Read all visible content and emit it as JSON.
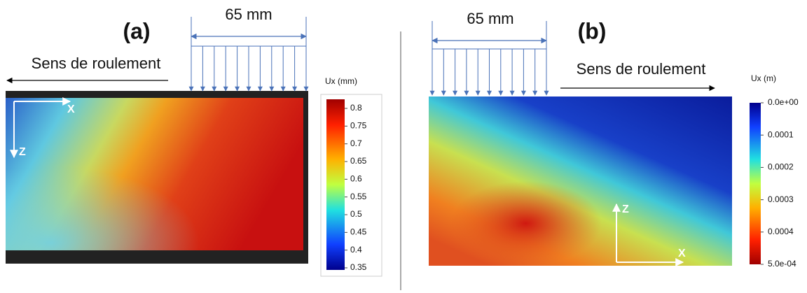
{
  "panels": [
    {
      "label": "(a)",
      "width": "65 mm",
      "direction": "Sens de roulement",
      "axes": {
        "x": "X",
        "z": "Z"
      },
      "colorbar": {
        "title": "Ux (mm)",
        "ticks": [
          "0.8",
          "0.75",
          "0.7",
          "0.65",
          "0.6",
          "0.55",
          "0.5",
          "0.45",
          "0.4",
          "0.35"
        ]
      }
    },
    {
      "label": "(b)",
      "width": "65 mm",
      "direction": "Sens de roulement",
      "axes": {
        "x": "X",
        "z": "Z"
      },
      "colorbar": {
        "title": "Ux (m)",
        "ticks": [
          "0.0e+00",
          "0.0001",
          "0.0002",
          "0.0003",
          "0.0004",
          "5.0e-04"
        ]
      }
    }
  ]
}
